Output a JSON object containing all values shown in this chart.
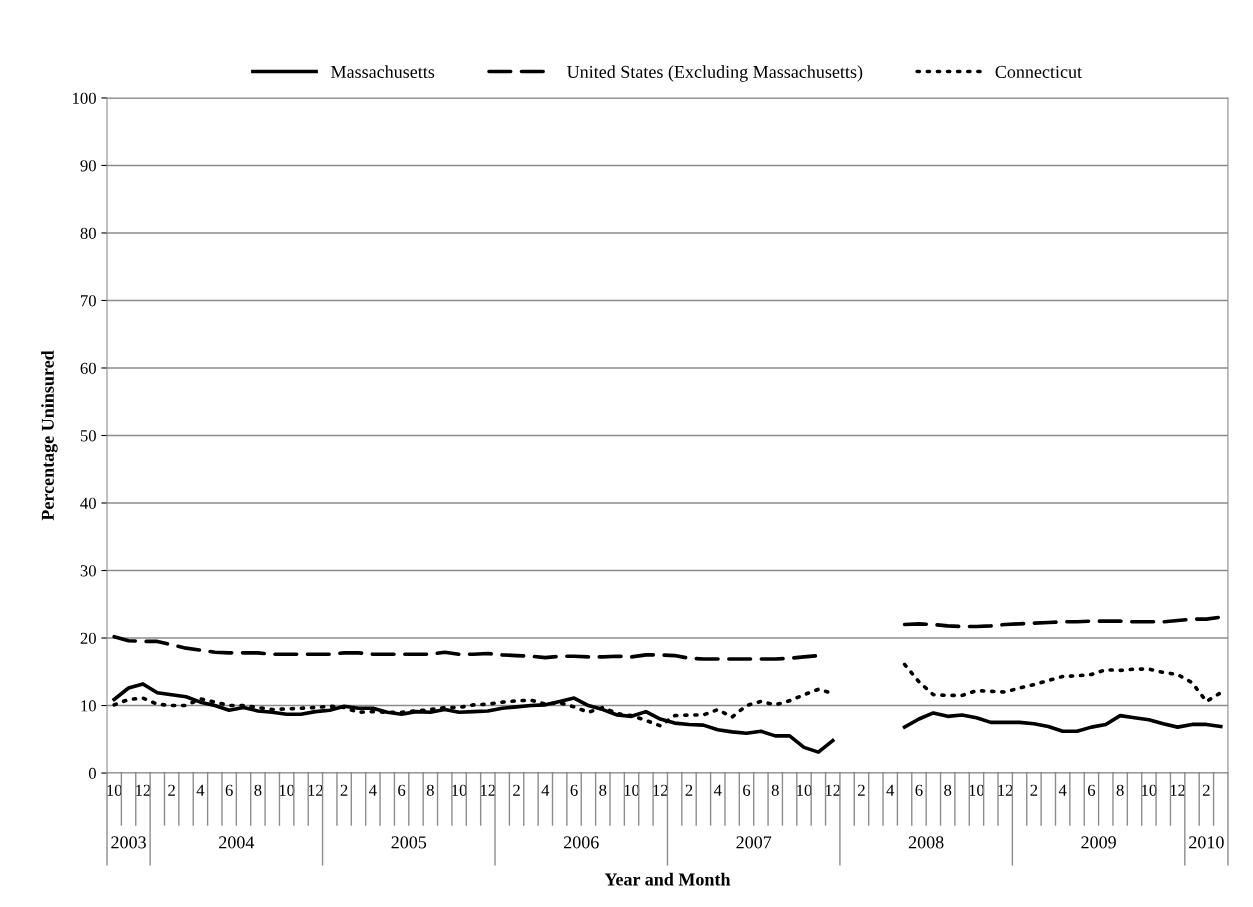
{
  "chart_data": {
    "type": "line",
    "xlabel": "Year and Month",
    "ylabel": "Percentage Uninsured",
    "x": [
      "2003-10",
      "2003-11",
      "2003-12",
      "2004-01",
      "2004-02",
      "2004-03",
      "2004-04",
      "2004-05",
      "2004-06",
      "2004-07",
      "2004-08",
      "2004-09",
      "2004-10",
      "2004-11",
      "2004-12",
      "2005-01",
      "2005-02",
      "2005-03",
      "2005-04",
      "2005-05",
      "2005-06",
      "2005-07",
      "2005-08",
      "2005-09",
      "2005-10",
      "2005-11",
      "2005-12",
      "2006-01",
      "2006-02",
      "2006-03",
      "2006-04",
      "2006-05",
      "2006-06",
      "2006-07",
      "2006-08",
      "2006-09",
      "2006-10",
      "2006-11",
      "2006-12",
      "2007-01",
      "2007-02",
      "2007-03",
      "2007-04",
      "2007-05",
      "2007-06",
      "2007-07",
      "2007-08",
      "2007-09",
      "2007-10",
      "2007-11",
      "2007-12",
      "2008-01",
      "2008-02",
      "2008-03",
      "2008-04",
      "2008-05",
      "2008-06",
      "2008-07",
      "2008-08",
      "2008-09",
      "2008-10",
      "2008-11",
      "2008-12",
      "2009-01",
      "2009-02",
      "2009-03",
      "2009-04",
      "2009-05",
      "2009-06",
      "2009-07",
      "2009-08",
      "2009-09",
      "2009-10",
      "2009-11",
      "2009-12",
      "2010-01",
      "2010-02",
      "2010-03"
    ],
    "series": [
      {
        "name": "Massachusetts",
        "color": "#000000",
        "line_style": "solid",
        "values": [
          10.9,
          12.6,
          13.2,
          11.9,
          11.6,
          11.3,
          10.5,
          10.0,
          9.3,
          9.7,
          9.2,
          9.0,
          8.7,
          8.7,
          9.1,
          9.3,
          9.9,
          9.6,
          9.6,
          9.0,
          8.7,
          9.1,
          9.0,
          9.4,
          9.0,
          9.1,
          9.2,
          9.6,
          9.8,
          10.0,
          10.1,
          10.6,
          11.1,
          10.0,
          9.4,
          8.6,
          8.4,
          9.1,
          8.0,
          7.4,
          7.2,
          7.1,
          6.4,
          6.1,
          5.9,
          6.2,
          5.5,
          5.5,
          3.8,
          3.1,
          4.8,
          null,
          null,
          null,
          null,
          6.8,
          8.0,
          8.9,
          8.4,
          8.6,
          8.2,
          7.5,
          7.5,
          7.5,
          7.3,
          6.9,
          6.2,
          6.2,
          6.8,
          7.2,
          8.5,
          8.2,
          7.9,
          7.3,
          6.8,
          7.2,
          7.2,
          6.9
        ]
      },
      {
        "name": "United States (Excluding Massachusetts)",
        "color": "#000000",
        "line_style": "dashed",
        "values": [
          20.2,
          19.6,
          19.5,
          19.5,
          19.0,
          18.5,
          18.2,
          17.9,
          17.8,
          17.8,
          17.8,
          17.6,
          17.6,
          17.6,
          17.6,
          17.6,
          17.8,
          17.8,
          17.6,
          17.6,
          17.6,
          17.6,
          17.6,
          17.9,
          17.6,
          17.6,
          17.7,
          17.5,
          17.4,
          17.3,
          17.1,
          17.3,
          17.3,
          17.2,
          17.2,
          17.3,
          17.2,
          17.5,
          17.5,
          17.4,
          17.0,
          16.9,
          16.9,
          16.9,
          16.9,
          16.9,
          16.9,
          17.0,
          17.2,
          17.4,
          null,
          null,
          null,
          null,
          null,
          22.0,
          22.1,
          22.0,
          21.8,
          21.7,
          21.7,
          21.8,
          22.0,
          22.1,
          22.2,
          22.3,
          22.4,
          22.4,
          22.5,
          22.5,
          22.5,
          22.4,
          22.4,
          22.4,
          22.6,
          22.8,
          22.8,
          23.1
        ]
      },
      {
        "name": "Connecticut",
        "color": "#000000",
        "line_style": "dotted",
        "values": [
          10.1,
          10.9,
          11.1,
          10.2,
          10.0,
          10.0,
          11.0,
          10.5,
          10.0,
          10.0,
          9.7,
          9.4,
          9.5,
          9.6,
          9.7,
          9.9,
          9.7,
          9.0,
          9.1,
          9.0,
          9.0,
          9.2,
          9.4,
          9.7,
          9.7,
          10.1,
          10.2,
          10.5,
          10.7,
          10.8,
          10.2,
          10.4,
          9.8,
          9.0,
          9.7,
          8.8,
          8.5,
          7.8,
          7.0,
          8.5,
          8.6,
          8.6,
          9.4,
          8.3,
          10.0,
          10.6,
          10.1,
          10.7,
          11.6,
          12.4,
          11.8,
          null,
          null,
          null,
          null,
          16.1,
          13.5,
          11.6,
          11.5,
          11.5,
          12.2,
          12.1,
          12.0,
          12.6,
          13.1,
          13.7,
          14.3,
          14.4,
          14.6,
          15.3,
          15.2,
          15.4,
          15.4,
          14.9,
          14.6,
          13.4,
          10.6,
          11.9
        ]
      }
    ],
    "xlim": [
      "2003-09-16",
      "2010-03-16"
    ],
    "xticks": [
      {
        "value": "2003-10",
        "label": "10"
      },
      {
        "value": "2003-12",
        "label": "12"
      },
      {
        "value": "2004-02",
        "label": "2"
      },
      {
        "value": "2004-04",
        "label": "4"
      },
      {
        "value": "2004-06",
        "label": "6"
      },
      {
        "value": "2004-08",
        "label": "8"
      },
      {
        "value": "2004-10",
        "label": "10"
      },
      {
        "value": "2004-12",
        "label": "12"
      },
      {
        "value": "2005-02",
        "label": "2"
      },
      {
        "value": "2005-04",
        "label": "4"
      },
      {
        "value": "2005-06",
        "label": "6"
      },
      {
        "value": "2005-08",
        "label": "8"
      },
      {
        "value": "2005-10",
        "label": "10"
      },
      {
        "value": "2005-12",
        "label": "12"
      },
      {
        "value": "2006-02",
        "label": "2"
      },
      {
        "value": "2006-04",
        "label": "4"
      },
      {
        "value": "2006-06",
        "label": "6"
      },
      {
        "value": "2006-08",
        "label": "8"
      },
      {
        "value": "2006-10",
        "label": "10"
      },
      {
        "value": "2006-12",
        "label": "12"
      },
      {
        "value": "2007-02",
        "label": "2"
      },
      {
        "value": "2007-04",
        "label": "4"
      },
      {
        "value": "2007-06",
        "label": "6"
      },
      {
        "value": "2007-08",
        "label": "8"
      },
      {
        "value": "2007-10",
        "label": "10"
      },
      {
        "value": "2007-12",
        "label": "12"
      },
      {
        "value": "2008-02",
        "label": "2"
      },
      {
        "value": "2008-04",
        "label": "4"
      },
      {
        "value": "2008-06",
        "label": "6"
      },
      {
        "value": "2008-08",
        "label": "8"
      },
      {
        "value": "2008-10",
        "label": "10"
      },
      {
        "value": "2008-12",
        "label": "12"
      },
      {
        "value": "2009-02",
        "label": "2"
      },
      {
        "value": "2009-04",
        "label": "4"
      },
      {
        "value": "2009-06",
        "label": "6"
      },
      {
        "value": "2009-08",
        "label": "8"
      },
      {
        "value": "2009-10",
        "label": "10"
      },
      {
        "value": "2009-12",
        "label": "12"
      },
      {
        "value": "2010-02",
        "label": "2"
      }
    ],
    "annotations": [
      "2003",
      "2004",
      "2005",
      "2006",
      "2007",
      "2008",
      "2009",
      "2010"
    ],
    "ylim": [
      0,
      100
    ],
    "yticks": [
      0,
      10,
      20,
      30,
      40,
      50,
      60,
      70,
      80,
      90,
      100
    ],
    "grid": "y",
    "legend": "top",
    "marker": "none"
  }
}
